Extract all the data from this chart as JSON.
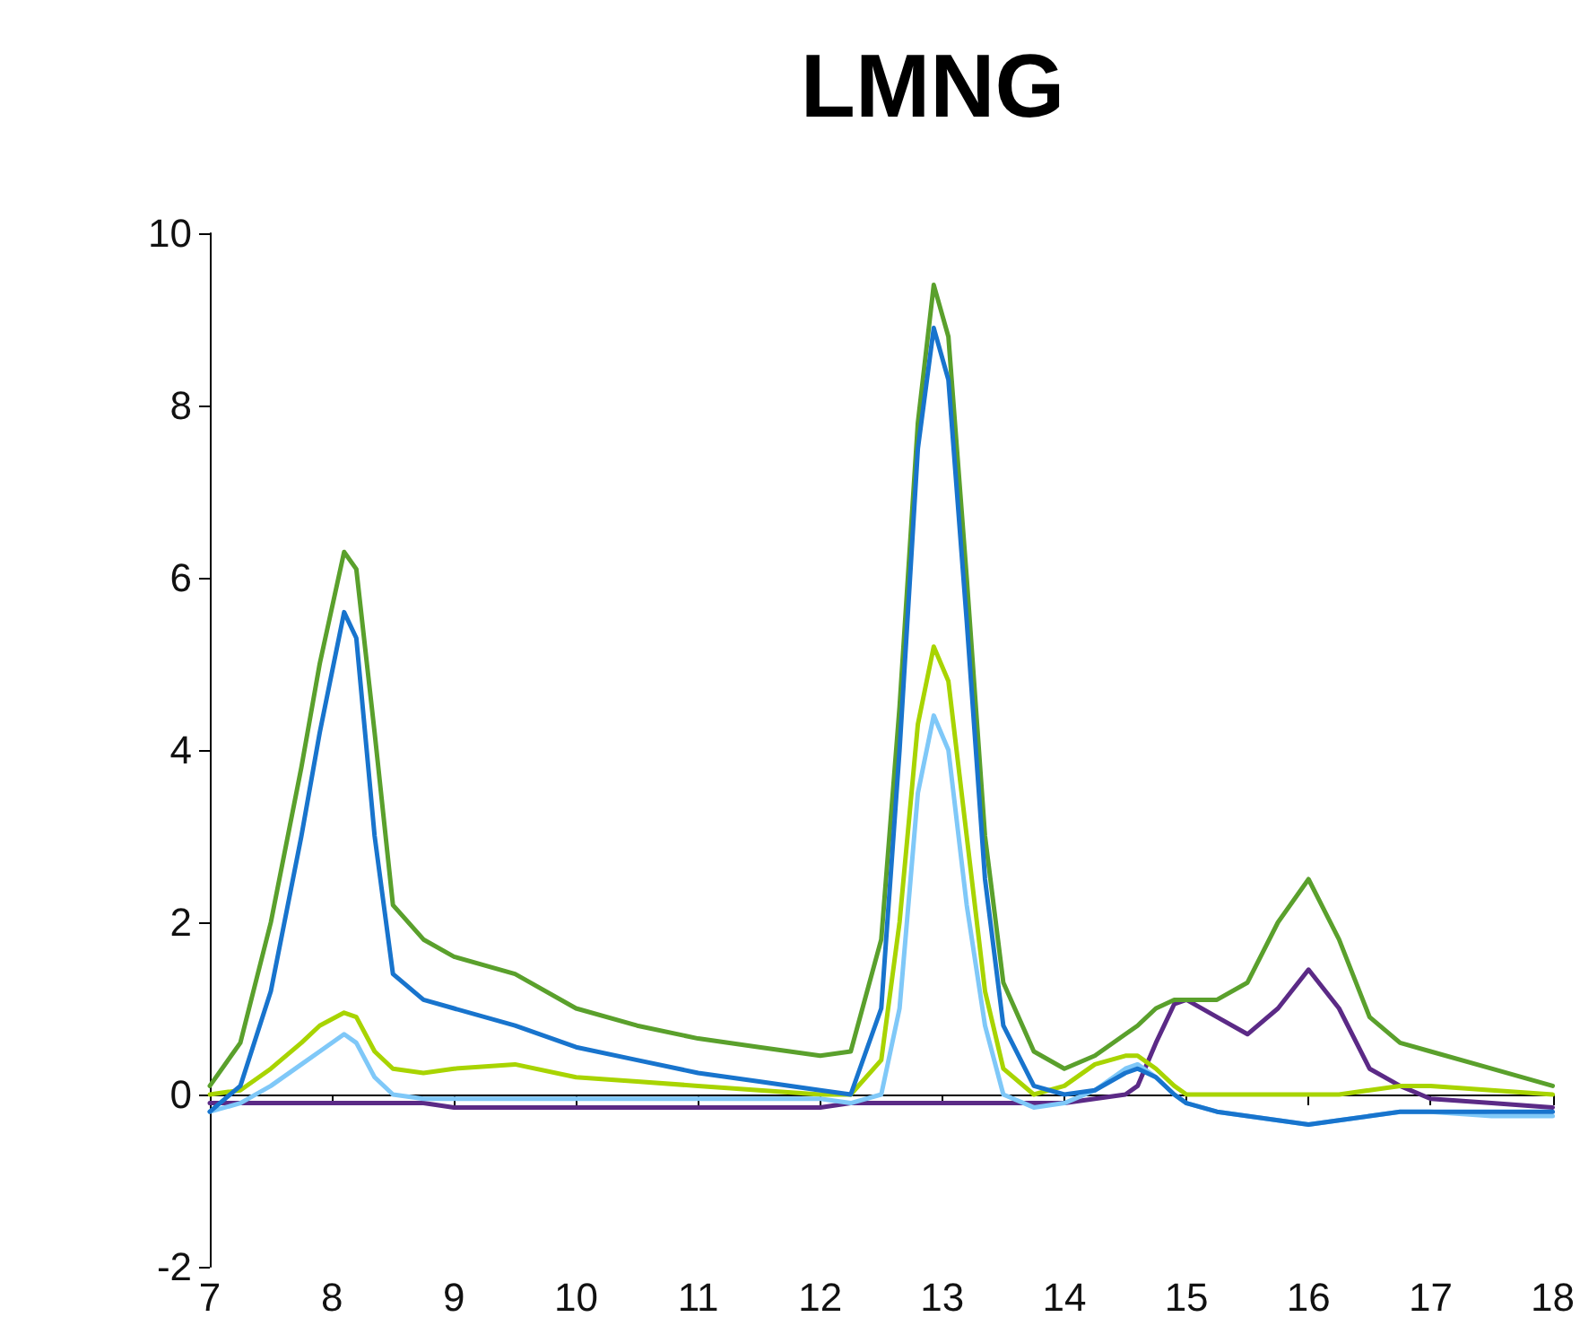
{
  "chart_data": {
    "type": "line",
    "title": "LMNG",
    "marker": "none",
    "line_style": "solid",
    "x": [
      7,
      7.25,
      7.5,
      7.75,
      7.9,
      8.1,
      8.2,
      8.35,
      8.5,
      8.75,
      9,
      9.5,
      10,
      10.5,
      11,
      11.5,
      12,
      12.25,
      12.5,
      12.65,
      12.8,
      12.93,
      13.05,
      13.2,
      13.35,
      13.5,
      13.75,
      14,
      14.25,
      14.5,
      14.6,
      14.75,
      14.9,
      15,
      15.25,
      15.5,
      15.75,
      16,
      16.25,
      16.5,
      16.75,
      17,
      17.5,
      18
    ],
    "series": [
      {
        "color": "#5b2a86",
        "values": [
          -0.1,
          -0.1,
          -0.1,
          -0.1,
          -0.1,
          -0.1,
          -0.1,
          -0.1,
          -0.1,
          -0.1,
          -0.15,
          -0.15,
          -0.15,
          -0.15,
          -0.15,
          -0.15,
          -0.15,
          -0.1,
          -0.1,
          -0.1,
          -0.1,
          -0.1,
          -0.1,
          -0.1,
          -0.1,
          -0.1,
          -0.1,
          -0.1,
          -0.05,
          0,
          0.1,
          0.6,
          1.05,
          1.1,
          0.9,
          0.7,
          1,
          1.45,
          1,
          0.3,
          0.1,
          -0.05,
          -0.1,
          -0.15
        ]
      },
      {
        "color": "#a8d400",
        "values": [
          0,
          0.05,
          0.3,
          0.6,
          0.8,
          0.95,
          0.9,
          0.5,
          0.3,
          0.25,
          0.3,
          0.35,
          0.2,
          0.15,
          0.1,
          0.05,
          0,
          0,
          0.4,
          2,
          4.3,
          5.2,
          4.8,
          3,
          1.2,
          0.3,
          0,
          0.1,
          0.35,
          0.45,
          0.45,
          0.3,
          0.1,
          0,
          0,
          0,
          0,
          0,
          0,
          0.05,
          0.1,
          0.1,
          0.05,
          0
        ]
      },
      {
        "color": "#7fc8f8",
        "values": [
          -0.2,
          -0.1,
          0.1,
          0.35,
          0.5,
          0.7,
          0.6,
          0.2,
          0,
          -0.05,
          -0.05,
          -0.05,
          -0.05,
          -0.05,
          -0.05,
          -0.05,
          -0.05,
          -0.1,
          0,
          1,
          3.5,
          4.4,
          4,
          2.2,
          0.8,
          0,
          -0.15,
          -0.1,
          0.05,
          0.3,
          0.35,
          0.2,
          0,
          -0.1,
          -0.2,
          -0.25,
          -0.3,
          -0.35,
          -0.3,
          -0.25,
          -0.2,
          -0.2,
          -0.25,
          -0.25
        ]
      },
      {
        "color": "#5aa02c",
        "values": [
          0.1,
          0.6,
          2,
          3.8,
          5,
          6.3,
          6.1,
          4.2,
          2.2,
          1.8,
          1.6,
          1.4,
          1,
          0.8,
          0.65,
          0.55,
          0.45,
          0.5,
          1.8,
          4.5,
          7.8,
          9.4,
          8.8,
          6,
          3,
          1.3,
          0.5,
          0.3,
          0.45,
          0.7,
          0.8,
          1,
          1.1,
          1.1,
          1.1,
          1.3,
          2,
          2.5,
          1.8,
          0.9,
          0.6,
          0.5,
          0.3,
          0.1
        ]
      },
      {
        "color": "#1874cd",
        "values": [
          -0.2,
          0.1,
          1.2,
          3,
          4.2,
          5.6,
          5.3,
          3,
          1.4,
          1.1,
          1,
          0.8,
          0.55,
          0.4,
          0.25,
          0.15,
          0.05,
          0,
          1,
          4,
          7.5,
          8.9,
          8.3,
          5.5,
          2.5,
          0.8,
          0.1,
          0,
          0.05,
          0.25,
          0.3,
          0.2,
          0,
          -0.1,
          -0.2,
          -0.25,
          -0.3,
          -0.35,
          -0.3,
          -0.25,
          -0.2,
          -0.2,
          -0.2,
          -0.2
        ]
      }
    ],
    "xlim": [
      7,
      18
    ],
    "ylim": [
      -2,
      10
    ],
    "xticks": [
      7,
      8,
      9,
      10,
      11,
      12,
      13,
      14,
      15,
      16,
      17,
      18
    ],
    "yticks": [
      -2,
      0,
      2,
      4,
      6,
      8,
      10
    ]
  }
}
